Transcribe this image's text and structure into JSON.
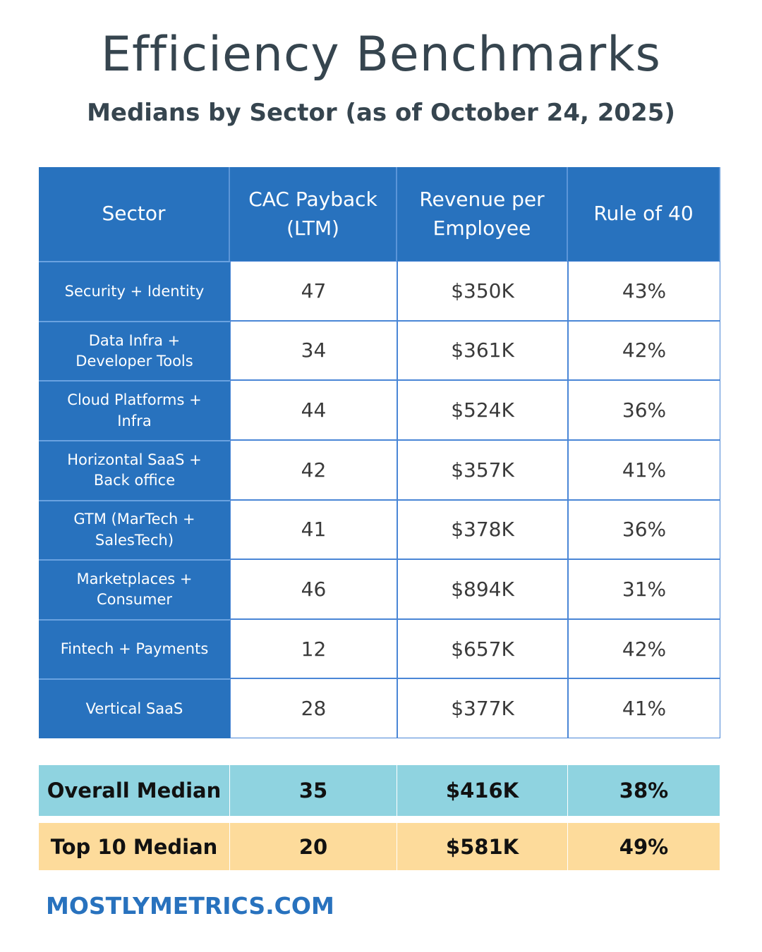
{
  "header": {
    "title": "Efficiency Benchmarks",
    "subtitle": "Medians by Sector (as of October 24, 2025)"
  },
  "table": {
    "columns": [
      "Sector",
      "CAC Payback\n(LTM)",
      "Revenue per\nEmployee",
      "Rule of 40"
    ],
    "rows": [
      [
        "Security + Identity",
        47,
        "$350K",
        "43%"
      ],
      [
        "Data Infra +\nDeveloper Tools",
        34,
        "$361K",
        "42%"
      ],
      [
        "Cloud Platforms +\nInfra",
        44,
        "$524K",
        "36%"
      ],
      [
        "Horizontal SaaS +\nBack office",
        42,
        "$357K",
        "41%"
      ],
      [
        "GTM (MarTech +\nSalesTech)",
        41,
        "$378K",
        "36%"
      ],
      [
        "Marketplaces +\nConsumer",
        46,
        "$894K",
        "31%"
      ],
      [
        "Fintech + Payments",
        12,
        "$657K",
        "42%"
      ],
      [
        "Vertical SaaS",
        28,
        "$377K",
        "41%"
      ]
    ],
    "summary": [
      [
        "Overall Median",
        35,
        "$416K",
        "38%"
      ],
      [
        "Top 10 Median",
        20,
        "$581K",
        "49%"
      ]
    ]
  },
  "footer": {
    "source": "MOSTLYMETRICS.COM"
  }
}
